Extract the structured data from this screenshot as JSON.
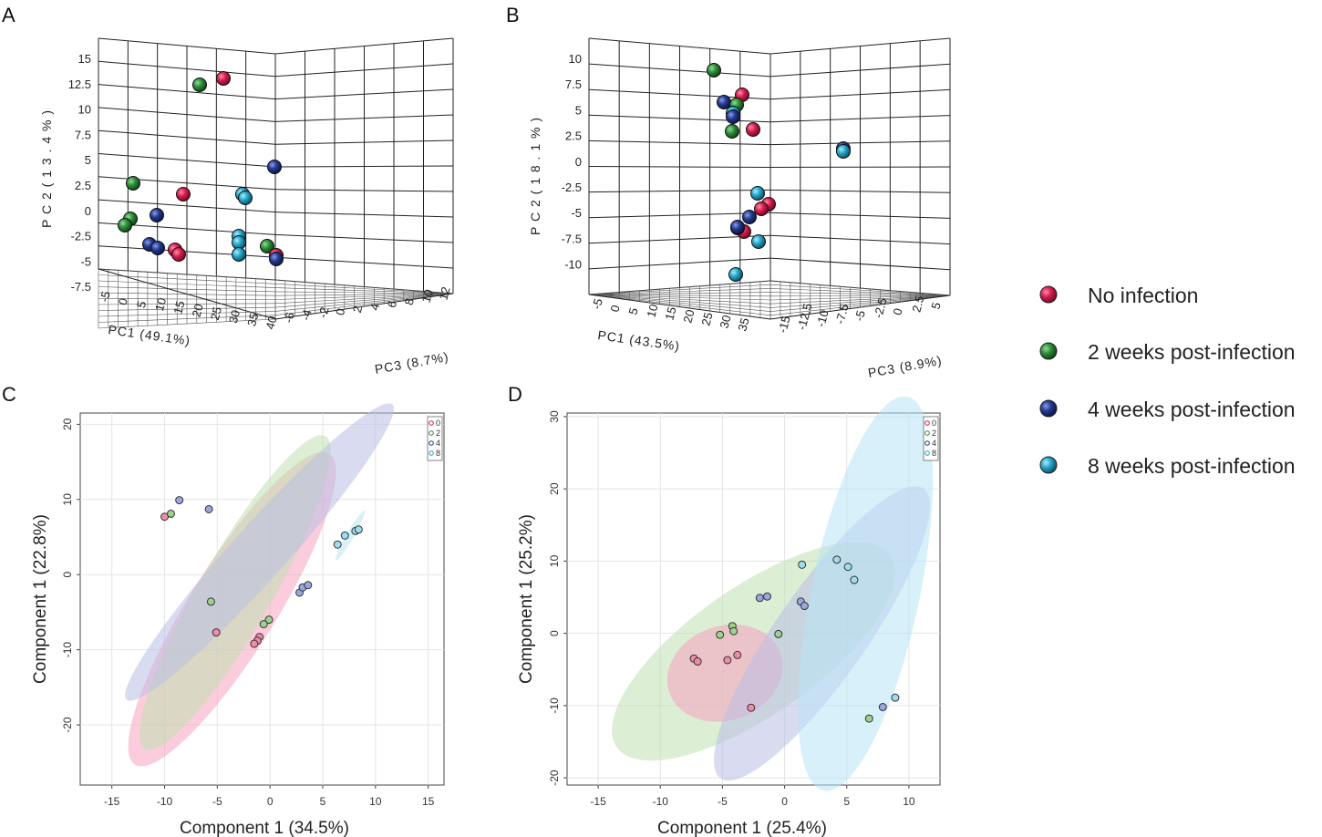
{
  "colors": {
    "0": "#d81b50",
    "2": "#2e8b3a",
    "4": "#233a8f",
    "8": "#25a5c8",
    "c0_fill": "#f08aa8",
    "c2_fill": "#9ed08e",
    "c4_fill": "#9aa6dc",
    "c8_fill": "#9fdcee",
    "e0": "#f5a3c0",
    "e2": "#bfe0b0",
    "e4": "#b9bfe6",
    "e8": "#b8e4f5"
  },
  "legend": {
    "items": [
      {
        "key": "0",
        "label": "No infection"
      },
      {
        "key": "2",
        "label": "2 weeks post-infection"
      },
      {
        "key": "4",
        "label": "4 weeks post-infection"
      },
      {
        "key": "8",
        "label": "8 weeks post-infection"
      }
    ]
  },
  "chart_data": [
    {
      "panel": "A",
      "type": "scatter",
      "projection": "3d",
      "xlabel": "PC1 (49.1%)",
      "ylabel": "P C 2   ( 1 3 . 4 % )",
      "zlabel": "PC3 (8.7%)",
      "xticks": [
        "-5",
        "0",
        "5",
        "10",
        "15",
        "20",
        "25",
        "30",
        "35",
        "40"
      ],
      "yticks": [
        "15",
        "12.5",
        "10",
        "7.5",
        "5",
        "2.5",
        "0",
        "-2.5",
        "-5",
        "-7.5"
      ],
      "zticks": [
        "-6",
        "-4",
        "-2",
        "0",
        "2",
        "4",
        "6",
        "8",
        "10",
        "12"
      ],
      "points": [
        {
          "g": "0",
          "label": "12.9"
        },
        {
          "g": "2",
          "label": "12.2"
        },
        {
          "g": "2",
          "label": "2.5"
        },
        {
          "g": "0",
          "label": "1.5"
        },
        {
          "g": "4",
          "label": "-0.6"
        },
        {
          "g": "2",
          "label": "-1.0"
        },
        {
          "g": "2",
          "label": "-1.6"
        },
        {
          "g": "4",
          "label": "-3.2"
        },
        {
          "g": "4",
          "label": "-3.6"
        },
        {
          "g": "0",
          "label": "-3.8"
        },
        {
          "g": "0",
          "label": "-4.3"
        },
        {
          "g": "4",
          "label": "4.3"
        },
        {
          "g": "8",
          "label": "1.8"
        },
        {
          "g": "8",
          "label": "1.4"
        },
        {
          "g": "8",
          "label": "-2.2"
        },
        {
          "g": "8",
          "label": "-2.8"
        },
        {
          "g": "8",
          "label": "-4.1"
        },
        {
          "g": "2",
          "label": "-3.4"
        },
        {
          "g": "0",
          "label": "-4.2"
        },
        {
          "g": "4",
          "label": "-4.5"
        }
      ]
    },
    {
      "panel": "B",
      "type": "scatter",
      "projection": "3d",
      "xlabel": "PC1 (43.5%)",
      "ylabel": "P C 2   ( 1 8 . 1 % )",
      "zlabel": "PC3 (8.9%)",
      "xticks": [
        "-5",
        "0",
        "5",
        "10",
        "15",
        "20",
        "25",
        "30",
        "35"
      ],
      "yticks": [
        "10",
        "7.5",
        "5",
        "2.5",
        "0",
        "-2.5",
        "-5",
        "-7.5",
        "-10"
      ],
      "zticks": [
        "-15",
        "-12.5",
        "-10",
        "-7.5",
        "-5",
        "-2.5",
        "0",
        "2.5",
        "5"
      ],
      "points": [
        {
          "g": "2",
          "label": "9.2"
        },
        {
          "g": "0",
          "label": "6.6"
        },
        {
          "g": "4",
          "label": "6.0"
        },
        {
          "g": "2",
          "label": "5.9"
        },
        {
          "g": "8",
          "label": "5.0"
        },
        {
          "g": "4",
          "label": "4.7"
        },
        {
          "g": "2",
          "label": "2.9"
        },
        {
          "g": "0",
          "label": "3.1"
        },
        {
          "g": "4",
          "label": "1.2"
        },
        {
          "g": "8",
          "label": "1.0"
        },
        {
          "g": "8",
          "label": "-3.2"
        },
        {
          "g": "0",
          "label": "-4.2"
        },
        {
          "g": "0",
          "label": "-4.7"
        },
        {
          "g": "4",
          "label": "-5.6"
        },
        {
          "g": "0",
          "label": "-5.2"
        },
        {
          "g": "2",
          "label": "-6.9"
        },
        {
          "g": "4",
          "label": "-6.6"
        },
        {
          "g": "8",
          "label": "-7.8"
        },
        {
          "g": "8",
          "label": "-10.8"
        }
      ]
    },
    {
      "panel": "C",
      "type": "scatter",
      "xlabel": "Component 1 (34.5%)",
      "ylabel": "Component 1 (22.8%)",
      "xlim": [
        -18,
        16.5
      ],
      "ylim": [
        -28,
        21.5
      ],
      "xticks": [
        -15,
        -10,
        -5,
        0,
        5,
        10,
        15
      ],
      "yticks": [
        -20,
        -10,
        0,
        10,
        20
      ],
      "legend_keys": [
        "0",
        "2",
        "4",
        "8"
      ],
      "points": [
        {
          "g": "0",
          "x": -10.0,
          "y": 7.7
        },
        {
          "g": "0",
          "x": -5.1,
          "y": -7.7
        },
        {
          "g": "0",
          "x": -1.0,
          "y": -8.3
        },
        {
          "g": "0",
          "x": -1.2,
          "y": -8.8
        },
        {
          "g": "0",
          "x": -1.5,
          "y": -9.2
        },
        {
          "g": "2",
          "x": -9.4,
          "y": 8.1
        },
        {
          "g": "2",
          "x": -5.6,
          "y": -3.6
        },
        {
          "g": "2",
          "x": -0.1,
          "y": -6.0
        },
        {
          "g": "2",
          "x": -0.6,
          "y": -6.6
        },
        {
          "g": "4",
          "x": -8.6,
          "y": 9.9
        },
        {
          "g": "4",
          "x": -5.8,
          "y": 8.7
        },
        {
          "g": "4",
          "x": 2.8,
          "y": -2.4
        },
        {
          "g": "4",
          "x": 3.1,
          "y": -1.7
        },
        {
          "g": "4",
          "x": 3.6,
          "y": -1.4
        },
        {
          "g": "8",
          "x": 6.4,
          "y": 4.0
        },
        {
          "g": "8",
          "x": 7.1,
          "y": 5.2
        },
        {
          "g": "8",
          "x": 8.1,
          "y": 5.8
        },
        {
          "g": "8",
          "x": 8.4,
          "y": 6.0
        }
      ],
      "ellipses": [
        {
          "g": "0",
          "cx": -3.6,
          "cy": -4.6,
          "rx": 20.3,
          "ry": 4.8,
          "angle": -58
        },
        {
          "g": "2",
          "cx": -3.3,
          "cy": -2.4,
          "rx": 20.0,
          "ry": 4.0,
          "angle": -60
        },
        {
          "g": "4",
          "cx": -1.0,
          "cy": 3.0,
          "rx": 22.0,
          "ry": 3.0,
          "angle": -48
        },
        {
          "g": "8",
          "cx": 7.6,
          "cy": 5.2,
          "rx": 3.2,
          "ry": 0.4,
          "angle": -60
        }
      ]
    },
    {
      "panel": "D",
      "type": "scatter",
      "xlabel": "Component 1 (25.4%)",
      "ylabel": "Component 1 (25.2%)",
      "xlim": [
        -17.5,
        12.5
      ],
      "ylim": [
        -21,
        30.5
      ],
      "xticks": [
        -15,
        -10,
        -5,
        0,
        5,
        10
      ],
      "yticks": [
        -20,
        -10,
        0,
        10,
        20,
        30
      ],
      "legend_keys": [
        "0",
        "2",
        "4",
        "8"
      ],
      "points": [
        {
          "g": "0",
          "x": -7.3,
          "y": -3.5
        },
        {
          "g": "0",
          "x": -7.0,
          "y": -3.9
        },
        {
          "g": "0",
          "x": -4.6,
          "y": -3.7
        },
        {
          "g": "0",
          "x": -3.8,
          "y": -3.0
        },
        {
          "g": "0",
          "x": -2.7,
          "y": -10.3
        },
        {
          "g": "2",
          "x": -5.2,
          "y": -0.2
        },
        {
          "g": "2",
          "x": -4.2,
          "y": 1.0
        },
        {
          "g": "2",
          "x": -4.1,
          "y": 0.3
        },
        {
          "g": "2",
          "x": -0.5,
          "y": -0.1
        },
        {
          "g": "2",
          "x": 6.8,
          "y": -11.8
        },
        {
          "g": "4",
          "x": -2.0,
          "y": 4.9
        },
        {
          "g": "4",
          "x": -1.4,
          "y": 5.1
        },
        {
          "g": "4",
          "x": 1.3,
          "y": 4.4
        },
        {
          "g": "4",
          "x": 1.6,
          "y": 3.8
        },
        {
          "g": "4",
          "x": 7.9,
          "y": -10.2
        },
        {
          "g": "8",
          "x": 1.4,
          "y": 9.5
        },
        {
          "g": "8",
          "x": 4.2,
          "y": 10.2
        },
        {
          "g": "8",
          "x": 5.1,
          "y": 9.2
        },
        {
          "g": "8",
          "x": 5.6,
          "y": 7.4
        },
        {
          "g": "8",
          "x": 8.9,
          "y": -8.9
        }
      ],
      "ellipses": [
        {
          "g": "2",
          "cx": -2.5,
          "cy": -2.5,
          "rx": 17.0,
          "ry": 6.5,
          "angle": -35
        },
        {
          "g": "0",
          "cx": -4.8,
          "cy": -5.5,
          "rx": 6.0,
          "ry": 4.8,
          "angle": -20
        },
        {
          "g": "4",
          "cx": 3.0,
          "cy": 0.0,
          "rx": 18.0,
          "ry": 4.6,
          "angle": -55
        },
        {
          "g": "8",
          "cx": 6.5,
          "cy": 5.5,
          "rx": 20.5,
          "ry": 5.5,
          "angle": -78
        }
      ]
    }
  ]
}
